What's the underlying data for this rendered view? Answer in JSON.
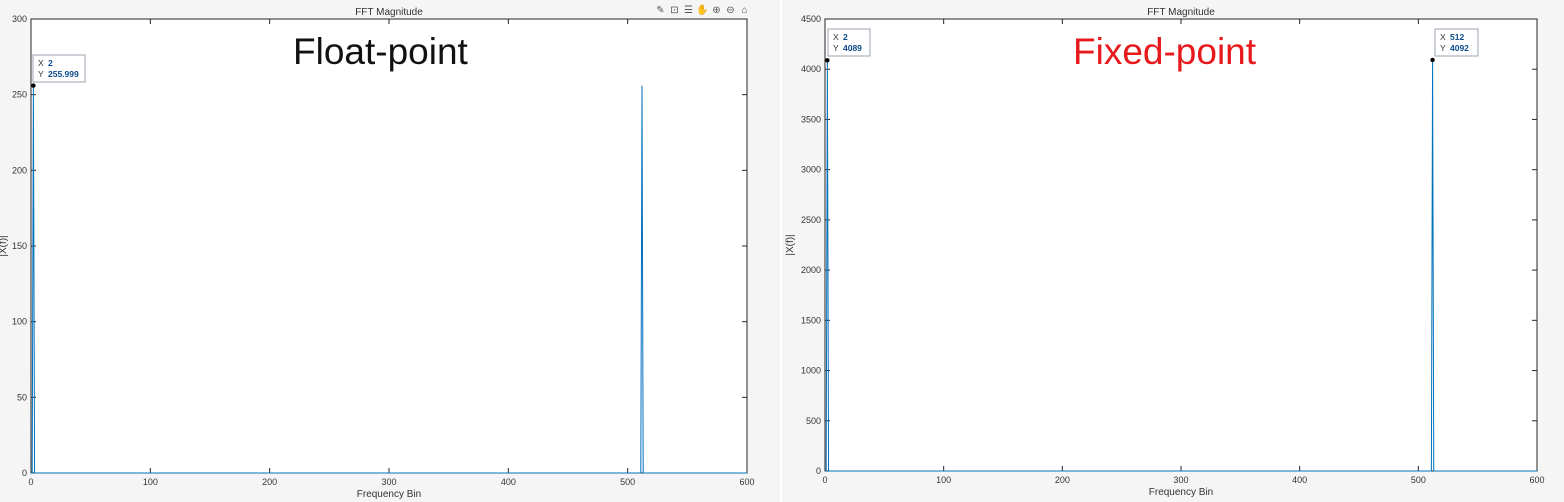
{
  "colors": {
    "line": "#0072BD",
    "datatip_text": "#0b4a8b",
    "fixed_label": "#e8191c"
  },
  "toolbar_icons": [
    "brush-icon",
    "datatip-icon",
    "legend-icon",
    "pan-icon",
    "zoom-in-icon",
    "zoom-out-icon",
    "home-icon"
  ],
  "chart_data": [
    {
      "type": "line",
      "title": "FFT Magnitude",
      "overlay_label": "Float-point",
      "xlabel": "Frequency Bin",
      "ylabel": "|X(f)|",
      "xlim": [
        0,
        600
      ],
      "ylim": [
        0,
        300
      ],
      "xticks": [
        0,
        100,
        200,
        300,
        400,
        500,
        600
      ],
      "yticks": [
        0,
        50,
        100,
        150,
        200,
        250,
        300
      ],
      "grid": false,
      "series": [
        {
          "x": [
            0,
            1,
            2,
            3,
            4,
            510,
            511,
            512,
            513,
            514,
            600
          ],
          "y": [
            0,
            0,
            255.999,
            0,
            0,
            0,
            0,
            255.999,
            0,
            0,
            0
          ]
        }
      ],
      "datatips": [
        {
          "x": 2,
          "y": 255.999,
          "x_text": "2",
          "y_text": "255.999"
        }
      ]
    },
    {
      "type": "line",
      "title": "FFT Magnitude",
      "overlay_label": "Fixed-point",
      "xlabel": "Frequency Bin",
      "ylabel": "|X(f)|",
      "xlim": [
        0,
        600
      ],
      "ylim": [
        0,
        4500
      ],
      "xticks": [
        0,
        100,
        200,
        300,
        400,
        500,
        600
      ],
      "yticks": [
        0,
        500,
        1000,
        1500,
        2000,
        2500,
        3000,
        3500,
        4000,
        4500
      ],
      "grid": false,
      "series": [
        {
          "x": [
            0,
            1,
            2,
            3,
            4,
            510,
            511,
            512,
            513,
            514,
            600
          ],
          "y": [
            0,
            0,
            4089,
            0,
            0,
            0,
            0,
            4092,
            0,
            0,
            0
          ]
        }
      ],
      "datatips": [
        {
          "x": 2,
          "y": 4089,
          "x_text": "2",
          "y_text": "4089"
        },
        {
          "x": 512,
          "y": 4092,
          "x_text": "512",
          "y_text": "4092"
        }
      ]
    }
  ]
}
